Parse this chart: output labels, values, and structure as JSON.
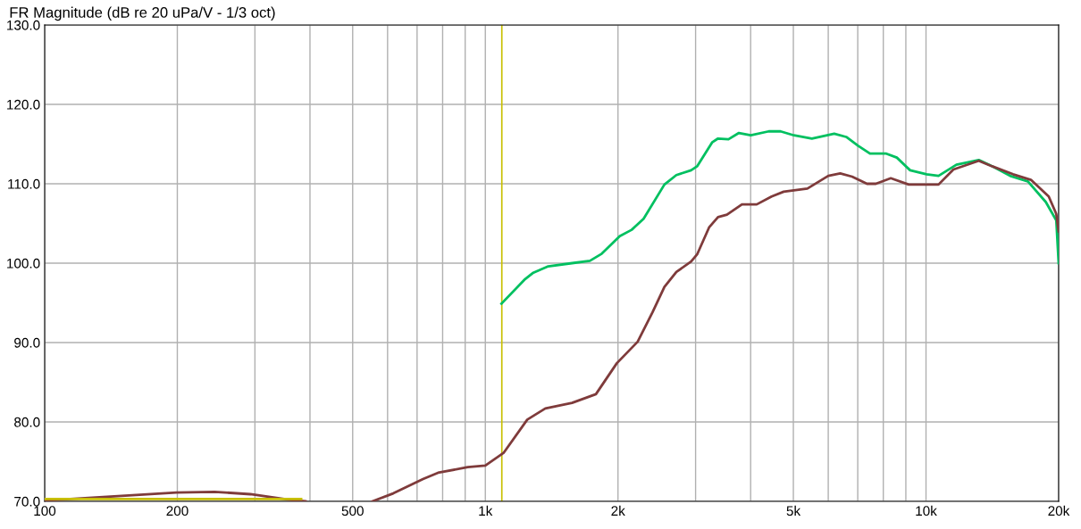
{
  "chart_data": {
    "type": "line",
    "title": "FR Magnitude (dB re 20 uPa/V - 1/3 oct)",
    "log": "x",
    "grid": true,
    "marker": "none",
    "line_style": "solid",
    "xlim": [
      100,
      20000
    ],
    "xticks": [
      100,
      {
        "value": 200,
        "label": "200"
      },
      {
        "value": 300,
        "label": null
      },
      {
        "value": 400,
        "label": null
      },
      500,
      {
        "value": 600,
        "label": null
      },
      {
        "value": 700,
        "label": null
      },
      {
        "value": 800,
        "label": null
      },
      {
        "value": 900,
        "label": null
      },
      {
        "value": 1000,
        "label": "1k"
      },
      {
        "value": 2000,
        "label": "2k"
      },
      {
        "value": 3000,
        "label": null
      },
      {
        "value": 4000,
        "label": null
      },
      {
        "value": 5000,
        "label": "5k"
      },
      {
        "value": 6000,
        "label": null
      },
      {
        "value": 7000,
        "label": null
      },
      {
        "value": 8000,
        "label": null
      },
      {
        "value": 9000,
        "label": null
      },
      {
        "value": 10000,
        "label": "10k"
      },
      {
        "value": 20000,
        "label": "20k"
      }
    ],
    "ylim": [
      70,
      130
    ],
    "yticks": [
      {
        "value": 70,
        "label": "70.0"
      },
      {
        "value": 80,
        "label": "80.0"
      },
      {
        "value": 90,
        "label": "90.0"
      },
      {
        "value": 100,
        "label": "100.0"
      },
      {
        "value": 110,
        "label": "110.0"
      },
      {
        "value": 120,
        "label": "120.0"
      },
      {
        "value": 130,
        "label": "130.0"
      }
    ],
    "ref_lines": [
      {
        "axis": "x",
        "value": 1090,
        "color": "#c8c000"
      }
    ],
    "series": [
      {
        "color": "#00c060",
        "x": [
          1088,
          1226,
          1285,
          1389,
          1573,
          1727,
          1838,
          2018,
          2148,
          2286,
          2549,
          2713,
          2931,
          3024,
          3270,
          3373,
          3562,
          3762,
          4003,
          4395,
          4677,
          5017,
          5508,
          6190,
          6590,
          7012,
          7461,
          8128,
          8584,
          9204,
          10030,
          10676,
          11722,
          13174,
          13913,
          15515,
          17030,
          18704,
          19751,
          20000
        ],
        "values": [
          94.9,
          97.9,
          98.8,
          99.6,
          100.0,
          100.3,
          101.2,
          103.4,
          104.2,
          105.6,
          109.9,
          111.1,
          111.7,
          112.2,
          115.2,
          115.7,
          115.6,
          116.4,
          116.1,
          116.6,
          116.6,
          116.1,
          115.7,
          116.3,
          115.9,
          114.8,
          113.8,
          113.8,
          113.3,
          111.7,
          111.2,
          111.0,
          112.4,
          113.0,
          112.4,
          111.0,
          110.3,
          107.7,
          105.4,
          100.0
        ]
      },
      {
        "color": "#7f3b3b",
        "x": [
          100,
          199,
          243,
          293,
          358,
          391,
          470,
          554,
          618,
          722,
          781,
          912,
          1000,
          1100,
          1245,
          1368,
          1573,
          1782,
          1988,
          2216,
          2395,
          2549,
          2713,
          2931,
          3024,
          3219,
          3373,
          3534,
          3822,
          4129,
          4464,
          4754,
          5381,
          6001,
          6387,
          6796,
          7345,
          7695,
          8319,
          9138,
          10676,
          11538,
          13174,
          14130,
          15758,
          17300,
          18988,
          19751,
          20000
        ],
        "values": [
          70.1,
          71.1,
          71.2,
          70.9,
          70.2,
          70.0,
          null,
          70.0,
          71.0,
          72.8,
          73.6,
          74.3,
          74.5,
          76.1,
          80.3,
          81.7,
          82.4,
          83.5,
          87.4,
          90.1,
          93.8,
          97.0,
          98.9,
          100.2,
          101.1,
          104.5,
          105.8,
          106.1,
          107.4,
          107.4,
          108.4,
          109.0,
          109.4,
          111.0,
          111.3,
          110.9,
          110.0,
          110.0,
          110.7,
          109.9,
          109.9,
          111.8,
          112.9,
          112.2,
          111.2,
          110.5,
          108.4,
          106.2,
          104.0
        ]
      },
      {
        "color": "#c8c000",
        "x": [
          100,
          382
        ],
        "values": [
          70.3,
          70.3
        ]
      }
    ]
  }
}
